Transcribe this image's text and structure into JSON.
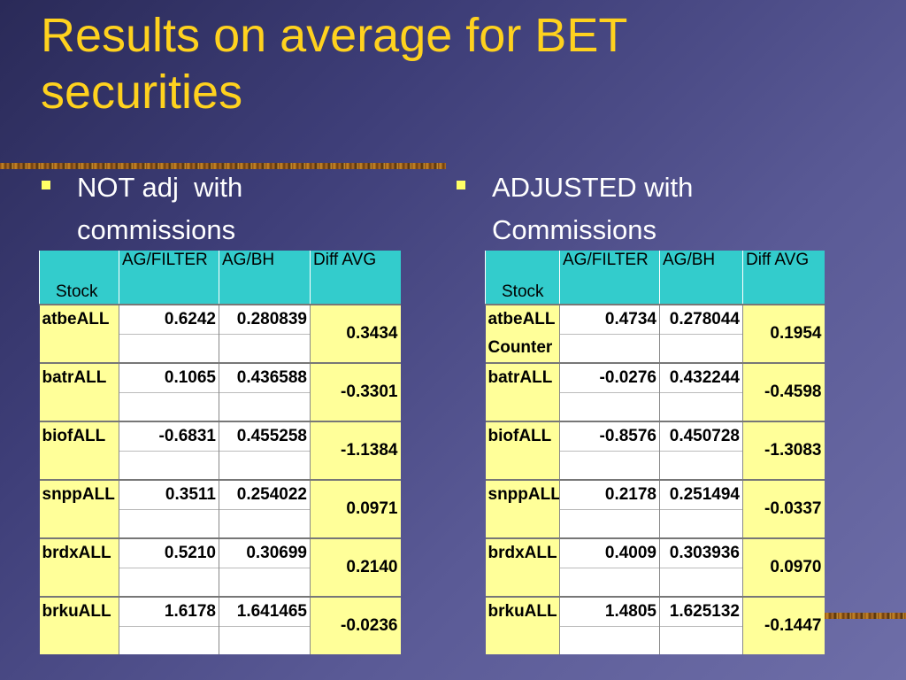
{
  "slide": {
    "title": "Results on average for BET\nsecurities"
  },
  "bullets": [
    {
      "text": "NOT adj  with\ncommissions"
    },
    {
      "text": "ADJUSTED with\nCommissions"
    }
  ],
  "tables": [
    {
      "headers": [
        "Stock",
        "AG/FILTER",
        "AG/BH",
        "Diff AVG"
      ],
      "rows": [
        {
          "stock": "atbeALL",
          "sub": "",
          "ag_filter": "0.6242",
          "ag_bh": "0.280839",
          "diff_avg": "0.3434"
        },
        {
          "stock": "batrALL",
          "sub": "",
          "ag_filter": "0.1065",
          "ag_bh": "0.436588",
          "diff_avg": "-0.3301"
        },
        {
          "stock": "biofALL",
          "sub": "",
          "ag_filter": "-0.6831",
          "ag_bh": "0.455258",
          "diff_avg": "-1.1384"
        },
        {
          "stock": "snppALL",
          "sub": "",
          "ag_filter": "0.3511",
          "ag_bh": "0.254022",
          "diff_avg": "0.0971"
        },
        {
          "stock": "brdxALL",
          "sub": "",
          "ag_filter": "0.5210",
          "ag_bh": "0.30699",
          "diff_avg": "0.2140"
        },
        {
          "stock": "brkuALL",
          "sub": "",
          "ag_filter": "1.6178",
          "ag_bh": "1.641465",
          "diff_avg": "-0.0236"
        }
      ]
    },
    {
      "headers": [
        "Stock",
        "AG/FILTER",
        "AG/BH",
        "Diff AVG"
      ],
      "rows": [
        {
          "stock": "atbeALL",
          "sub": "Counter",
          "ag_filter": "0.4734",
          "ag_bh": "0.278044",
          "diff_avg": "0.1954"
        },
        {
          "stock": "batrALL",
          "sub": "",
          "ag_filter": "-0.0276",
          "ag_bh": "0.432244",
          "diff_avg": "-0.4598"
        },
        {
          "stock": "biofALL",
          "sub": "",
          "ag_filter": "-0.8576",
          "ag_bh": "0.450728",
          "diff_avg": "-1.3083"
        },
        {
          "stock": "snppALL",
          "sub": "",
          "ag_filter": "0.2178",
          "ag_bh": "0.251494",
          "diff_avg": "-0.0337"
        },
        {
          "stock": "brdxALL",
          "sub": "",
          "ag_filter": "0.4009",
          "ag_bh": "0.303936",
          "diff_avg": "0.0970"
        },
        {
          "stock": "brkuALL",
          "sub": "",
          "ag_filter": "1.4805",
          "ag_bh": "1.625132",
          "diff_avg": "-0.1447"
        }
      ]
    }
  ],
  "colors": {
    "title": "#ffd21e",
    "header_fill": "#33cccc",
    "row_fill": "#ffff99",
    "bullet_marker": "#ffff66",
    "background": "#3e3e78"
  }
}
